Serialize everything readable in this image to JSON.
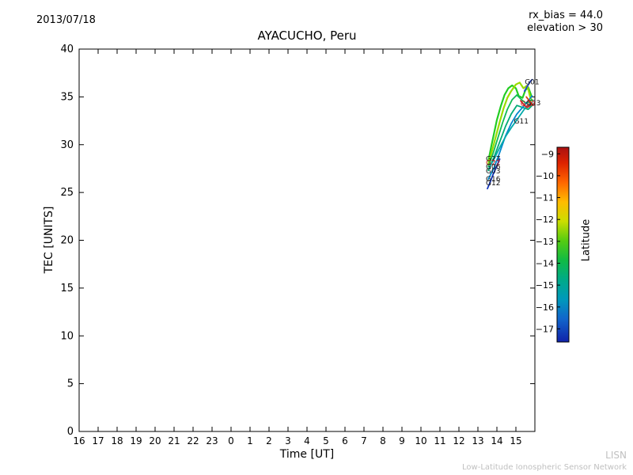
{
  "header": {
    "date": "2013/07/18",
    "rx_bias": "rx_bias = 44.0",
    "elevation": "elevation > 30"
  },
  "chart_data": {
    "type": "line",
    "title": "AYACUCHO, Peru",
    "xlabel": "Time [UT]",
    "ylabel": "TEC [UNITS]",
    "xlim": [
      16,
      40
    ],
    "ylim": [
      0,
      40
    ],
    "x_ticks": [
      "16",
      "17",
      "18",
      "19",
      "20",
      "21",
      "22",
      "23",
      "0",
      "1",
      "2",
      "3",
      "4",
      "5",
      "6",
      "7",
      "8",
      "9",
      "10",
      "11",
      "12",
      "13",
      "14",
      "15"
    ],
    "y_ticks": [
      "0",
      "5",
      "10",
      "15",
      "20",
      "25",
      "30",
      "35",
      "40"
    ],
    "note": "x values below are hours on the 16UT-to-16UT axis; 37.5 = 13:30 UT",
    "series": [
      {
        "name": "G27",
        "latitude": -13,
        "color": "#22cc22",
        "width": 2.2,
        "points": [
          [
            37.55,
            28.3
          ],
          [
            37.7,
            29.8
          ],
          [
            37.85,
            31.2
          ],
          [
            38.0,
            32.6
          ],
          [
            38.2,
            34.0
          ],
          [
            38.4,
            35.2
          ],
          [
            38.6,
            35.9
          ],
          [
            38.8,
            36.2
          ],
          [
            39.0,
            35.9
          ],
          [
            39.15,
            35.1
          ],
          [
            39.35,
            34.9
          ],
          [
            39.5,
            35.7
          ],
          [
            39.65,
            36.0
          ],
          [
            39.8,
            35.2
          ]
        ]
      },
      {
        "name": "G22",
        "latitude": -12,
        "color": "#99dd00",
        "width": 2.2,
        "points": [
          [
            37.55,
            28.0
          ],
          [
            37.75,
            29.4
          ],
          [
            37.95,
            30.9
          ],
          [
            38.15,
            32.4
          ],
          [
            38.35,
            33.8
          ],
          [
            38.55,
            34.9
          ],
          [
            38.75,
            35.6
          ],
          [
            39.0,
            36.3
          ],
          [
            39.2,
            36.5
          ],
          [
            39.4,
            35.9
          ],
          [
            39.6,
            36.2
          ],
          [
            39.75,
            35.0
          ],
          [
            39.85,
            34.6
          ]
        ]
      },
      {
        "name": "G06",
        "latitude": -13.5,
        "color": "#11bb55",
        "width": 1.8,
        "points": [
          [
            37.55,
            27.7
          ],
          [
            37.8,
            29.1
          ],
          [
            38.05,
            30.7
          ],
          [
            38.3,
            32.3
          ],
          [
            38.55,
            33.7
          ],
          [
            38.8,
            34.7
          ],
          [
            39.05,
            35.2
          ],
          [
            39.3,
            34.7
          ],
          [
            39.55,
            34.3
          ],
          [
            39.85,
            34.7
          ]
        ]
      },
      {
        "name": "G03",
        "latitude": -14,
        "color": "#00aa77",
        "width": 1.8,
        "points": [
          [
            37.55,
            27.3
          ],
          [
            37.85,
            28.7
          ],
          [
            38.15,
            30.3
          ],
          [
            38.45,
            31.9
          ],
          [
            38.75,
            33.2
          ],
          [
            39.05,
            34.1
          ],
          [
            39.35,
            33.9
          ],
          [
            39.65,
            33.7
          ],
          [
            39.85,
            34.1
          ]
        ]
      },
      {
        "name": "G16",
        "latitude": -16,
        "color": "#0088cc",
        "width": 1.8,
        "points": [
          [
            37.55,
            26.4
          ],
          [
            37.85,
            27.6
          ],
          [
            38.15,
            29.2
          ],
          [
            38.45,
            30.9
          ],
          [
            38.75,
            32.2
          ],
          [
            39.05,
            33.2
          ],
          [
            39.35,
            33.9
          ],
          [
            39.65,
            34.6
          ],
          [
            39.85,
            35.1
          ]
        ]
      },
      {
        "name": "G12",
        "latitude": -17,
        "color": "#1133bb",
        "width": 1.8,
        "points": [
          [
            37.5,
            25.4
          ],
          [
            37.65,
            26.1
          ],
          [
            37.8,
            26.9
          ],
          [
            38.0,
            27.8
          ],
          [
            38.15,
            28.5
          ]
        ]
      },
      {
        "name": "G11",
        "latitude": -15,
        "color": "#00aaaa",
        "width": 1.8,
        "points": [
          [
            37.6,
            27.6
          ],
          [
            37.9,
            28.7
          ],
          [
            38.2,
            29.9
          ],
          [
            38.5,
            31.0
          ],
          [
            38.8,
            31.9
          ],
          [
            39.05,
            32.6
          ],
          [
            39.3,
            33.3
          ],
          [
            39.55,
            34.0
          ],
          [
            39.85,
            34.4
          ]
        ]
      },
      {
        "name": "G20",
        "latitude": -9,
        "color": "#cc2222",
        "width": 1.8,
        "points": [
          [
            39.25,
            34.6
          ],
          [
            39.45,
            34.1
          ],
          [
            39.6,
            33.9
          ],
          [
            39.75,
            34.1
          ],
          [
            39.85,
            34.3
          ]
        ]
      },
      {
        "name": "G23",
        "latitude": -10,
        "color": "#dd4411",
        "width": 1.8,
        "points": [
          [
            39.55,
            35.0
          ],
          [
            39.7,
            34.6
          ],
          [
            39.85,
            34.2
          ]
        ]
      },
      {
        "name": "G01",
        "latitude": -17,
        "color": "#2244cc",
        "width": 1.8,
        "points": [
          [
            39.45,
            35.6
          ],
          [
            39.6,
            36.1
          ],
          [
            39.75,
            36.6
          ],
          [
            39.85,
            36.8
          ]
        ]
      }
    ],
    "labels": [
      {
        "text": "G27",
        "x": 37.5,
        "y": 28.55,
        "color": "#111111"
      },
      {
        "text": "G22",
        "x": 37.5,
        "y": 28.1,
        "color": "#cc2222"
      },
      {
        "text": "G06",
        "x": 37.5,
        "y": 27.7,
        "color": "#111111"
      },
      {
        "text": "G03",
        "x": 37.5,
        "y": 27.25,
        "color": "#111111"
      },
      {
        "text": "G16",
        "x": 37.5,
        "y": 26.4,
        "color": "#111111"
      },
      {
        "text": "G12",
        "x": 37.5,
        "y": 26.0,
        "color": "#111111"
      },
      {
        "text": "G01",
        "x": 39.55,
        "y": 36.55,
        "color": "#111111"
      },
      {
        "text": "G23",
        "x": 39.62,
        "y": 34.35,
        "color": "#111111"
      },
      {
        "text": "G20",
        "x": 39.33,
        "y": 34.3,
        "color": "#cc2222"
      },
      {
        "text": "G11",
        "x": 38.98,
        "y": 32.45,
        "color": "#111111"
      }
    ],
    "legend_position": "none",
    "grid": false
  },
  "colorbar": {
    "label": "Latitude",
    "top_value": -8.7,
    "bottom_value": -17.6,
    "ticks": [
      "−9",
      "−10",
      "−11",
      "−12",
      "−13",
      "−14",
      "−15",
      "−16",
      "−17"
    ],
    "tick_values": [
      -9,
      -10,
      -11,
      -12,
      -13,
      -14,
      -15,
      -16,
      -17
    ],
    "stops": [
      {
        "o": 0.0,
        "c": "#aa1111"
      },
      {
        "o": 0.08,
        "c": "#dd2200"
      },
      {
        "o": 0.18,
        "c": "#ff6600"
      },
      {
        "o": 0.28,
        "c": "#ffbb00"
      },
      {
        "o": 0.38,
        "c": "#ccdd00"
      },
      {
        "o": 0.48,
        "c": "#55cc11"
      },
      {
        "o": 0.58,
        "c": "#11bb44"
      },
      {
        "o": 0.68,
        "c": "#00aa88"
      },
      {
        "o": 0.78,
        "c": "#0099bb"
      },
      {
        "o": 0.88,
        "c": "#1166cc"
      },
      {
        "o": 1.0,
        "c": "#1122aa"
      }
    ]
  },
  "watermark": {
    "line1": "LISN",
    "line2": "Low-Latitude Ionospheric Sensor Network"
  }
}
